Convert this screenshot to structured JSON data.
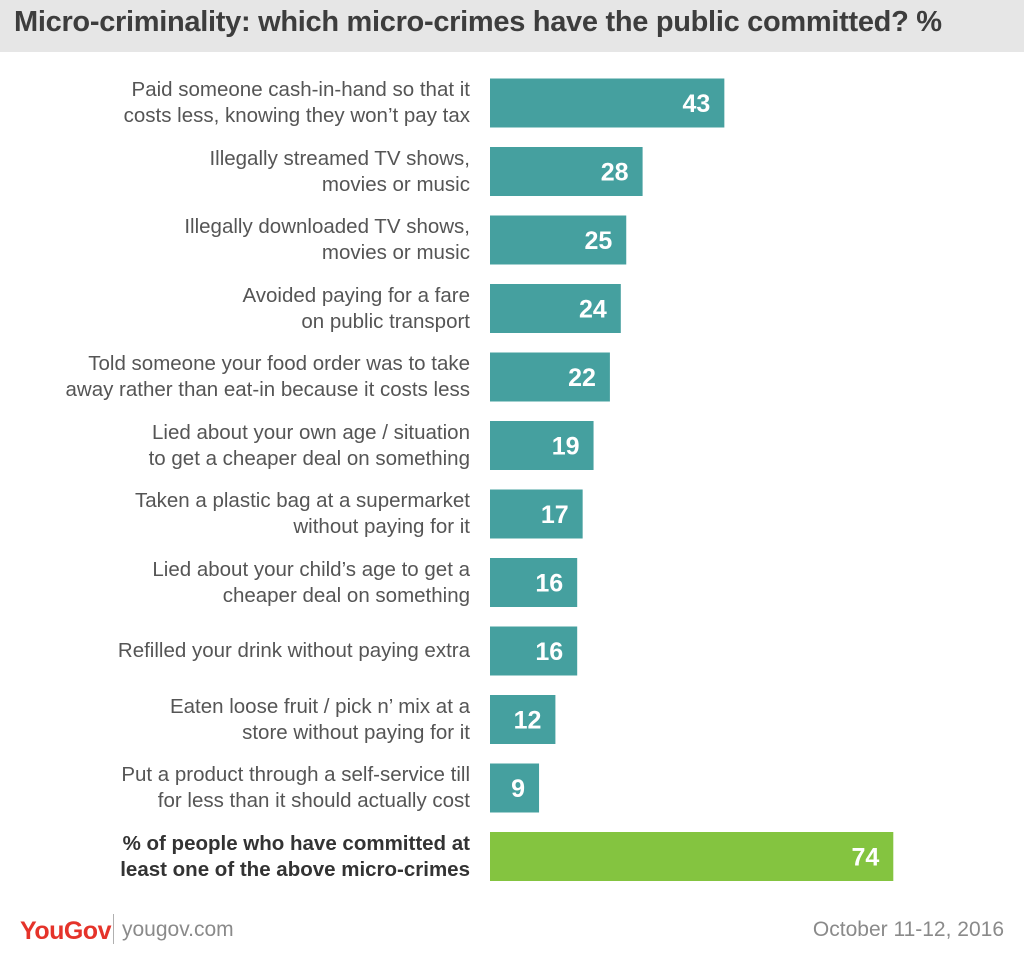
{
  "title": "Micro-criminality: which micro-crimes have the public committed? %",
  "footer": {
    "logo": "YouGov",
    "url": "yougov.com",
    "date": "October 11-12, 2016"
  },
  "colors": {
    "bar": "#45a09f",
    "highlight": "#84c440",
    "title_bg": "#e6e6e6",
    "logo": "#e5332a"
  },
  "chart_data": {
    "type": "bar",
    "orientation": "horizontal",
    "categories": [
      [
        "Paid someone cash-in-hand so that it",
        "costs less, knowing they won’t pay tax"
      ],
      [
        "Illegally streamed TV shows,",
        "movies or music"
      ],
      [
        "Illegally downloaded TV shows,",
        "movies or music"
      ],
      [
        "Avoided paying for a fare",
        "on public transport"
      ],
      [
        "Told someone your food order was to take",
        "away rather than eat-in because it costs less"
      ],
      [
        "Lied about your own age / situation",
        "to get a cheaper deal on something"
      ],
      [
        "Taken a plastic bag at a supermarket",
        "without paying for it"
      ],
      [
        "Lied about your child’s age to get a",
        "cheaper deal on something"
      ],
      [
        "Refilled your drink without paying extra"
      ],
      [
        "Eaten loose fruit / pick n’ mix at a",
        "store without paying for it"
      ],
      [
        "Put a product through a self-service till",
        "for less than it should actually cost"
      ],
      [
        "% of people who have committed at",
        "least one of the above micro-crimes"
      ]
    ],
    "values": [
      43,
      28,
      25,
      24,
      22,
      19,
      17,
      16,
      16,
      12,
      9,
      74
    ],
    "highlight_index": 11,
    "data_labels": true,
    "grid": false
  }
}
